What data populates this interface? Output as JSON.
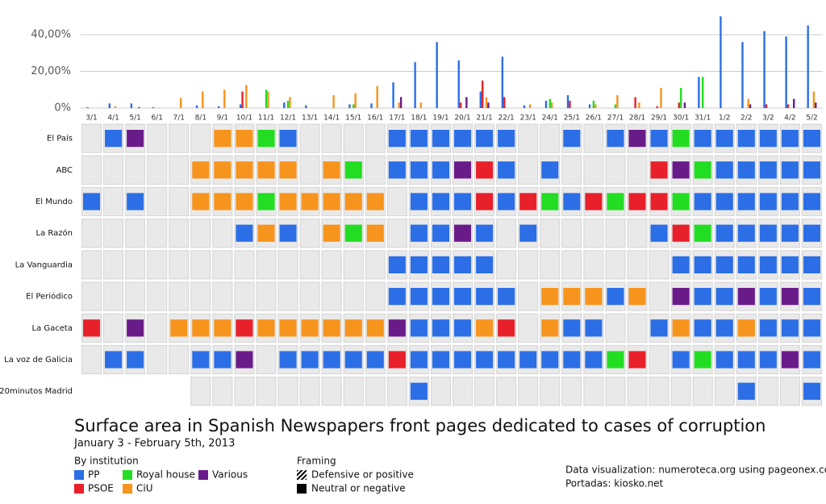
{
  "chart_data": {
    "type": "bar",
    "title": "Surface area in Spanish Newspapers front pages dedicated to cases of corruption",
    "subtitle": "January 3 - February 5th, 2013",
    "legend_title": "By institution",
    "framing_title": "Framing",
    "framing": [
      "Defensive or positive",
      "Neutral or negative"
    ],
    "credits": [
      "Data visualization: numeroteca.org using pageonex.com",
      "Portadas: kiosko.net"
    ],
    "categories": [
      "3/1",
      "4/1",
      "5/1",
      "6/1",
      "7/1",
      "8/1",
      "9/1",
      "10/1",
      "11/1",
      "12/1",
      "13/1",
      "14/1",
      "15/1",
      "16/1",
      "17/1",
      "18/1",
      "19/1",
      "20/1",
      "21/1",
      "22/1",
      "23/1",
      "24/1",
      "25/1",
      "26/1",
      "27/1",
      "28/1",
      "29/1",
      "30/1",
      "31/1",
      "1/2",
      "2/2",
      "3/2",
      "4/2",
      "5/2"
    ],
    "ylim": [
      0,
      51
    ],
    "yticks": [
      {
        "value": 0,
        "label": "0%"
      },
      {
        "value": 20,
        "label": "20,00%"
      },
      {
        "value": 40,
        "label": "40,00%"
      }
    ],
    "grid": true,
    "series": [
      {
        "name": "PP",
        "color": "#2b6ee6",
        "values": [
          0.5,
          2.5,
          2.5,
          0.5,
          0,
          1.5,
          1,
          2,
          0,
          3,
          1.5,
          0,
          2,
          2.5,
          14,
          25,
          36,
          26,
          9,
          28,
          1.5,
          4,
          7,
          2,
          0,
          0,
          0,
          0,
          17,
          50,
          36,
          42,
          39,
          45
        ]
      },
      {
        "name": "PSOE",
        "color": "#e8202a",
        "values": [
          0,
          0,
          0,
          0,
          0,
          0,
          0,
          9,
          0,
          0,
          0,
          0,
          0,
          0,
          0,
          0,
          0,
          3,
          15,
          6,
          0,
          0,
          4,
          0,
          0,
          6,
          1,
          3,
          0,
          0,
          0,
          2,
          2,
          0
        ]
      },
      {
        "name": "Royal house",
        "color": "#22dd22",
        "values": [
          0,
          0,
          0,
          0,
          0,
          0,
          0,
          0,
          10,
          4,
          0,
          0,
          2,
          0,
          0,
          0,
          0,
          0,
          0,
          0,
          0,
          5,
          0,
          4,
          2,
          0,
          0,
          11,
          17,
          0,
          0,
          0,
          0,
          0
        ]
      },
      {
        "name": "CiU",
        "color": "#f7941d",
        "values": [
          0,
          1,
          0,
          0,
          5.5,
          9,
          10,
          12.5,
          9,
          6,
          0,
          7,
          8,
          12,
          3,
          3,
          0,
          0,
          6,
          0,
          2,
          3,
          0,
          2,
          7,
          3,
          11,
          0,
          0,
          0,
          5,
          0,
          0,
          9
        ]
      },
      {
        "name": "Various",
        "color": "#6a1b8a",
        "values": [
          0,
          0,
          0.5,
          0,
          0,
          0,
          0,
          0,
          0,
          0,
          0,
          0,
          0,
          0,
          6,
          0,
          0,
          6,
          3,
          0,
          0,
          0,
          0,
          0,
          0,
          0,
          0,
          3,
          0,
          0,
          2,
          0,
          5,
          3
        ]
      }
    ],
    "papers": [
      {
        "name": "El País",
        "cells": [
          null,
          "PP",
          "Various",
          null,
          null,
          null,
          "CiU",
          "CiU",
          "Royal house",
          "PP",
          null,
          null,
          null,
          null,
          "PP",
          "PP",
          "PP",
          "PP",
          "PP",
          "PP",
          null,
          null,
          "PP",
          null,
          "PP",
          "Various",
          "PP",
          "Royal house",
          "PP",
          "PP",
          "PP",
          "PP",
          "PP",
          "PP"
        ]
      },
      {
        "name": "ABC",
        "cells": [
          null,
          null,
          null,
          null,
          null,
          "CiU",
          "CiU",
          "CiU",
          "CiU",
          "CiU",
          null,
          "CiU",
          "Royal house",
          null,
          "PP",
          "PP",
          "PP",
          "Various",
          "PSOE",
          "PP",
          null,
          "PP",
          null,
          null,
          null,
          null,
          "PSOE",
          "Various",
          "Royal house",
          "PP",
          "PP",
          "PP",
          "PP",
          "PP"
        ]
      },
      {
        "name": "El Mundo",
        "cells": [
          "PP",
          null,
          "PP",
          null,
          null,
          "CiU",
          "CiU",
          "CiU",
          "Royal house",
          "CiU",
          "CiU",
          "CiU",
          "CiU",
          "CiU",
          null,
          "PP",
          "PP",
          "PP",
          "PSOE",
          "PP",
          "PSOE",
          "Royal house",
          "PP",
          "PSOE",
          "Royal house",
          "PSOE",
          "PSOE",
          "Royal house",
          "PP",
          "PP",
          "PP",
          "PP",
          "PP",
          "PP"
        ]
      },
      {
        "name": "La Razón",
        "cells": [
          null,
          null,
          null,
          null,
          null,
          null,
          null,
          "PP",
          "CiU",
          "PP",
          null,
          "CiU",
          "Royal house",
          "CiU",
          null,
          "PP",
          "PP",
          "Various",
          "PP",
          null,
          "PP",
          null,
          null,
          null,
          null,
          null,
          "PP",
          "PSOE",
          "Royal house",
          "PP",
          "PP",
          "PP",
          "PP",
          "PP"
        ]
      },
      {
        "name": "La Vanguardia",
        "cells": [
          null,
          null,
          null,
          null,
          null,
          null,
          null,
          null,
          null,
          null,
          null,
          null,
          null,
          null,
          "PP",
          "PP",
          "PP",
          "PP",
          "PP",
          null,
          null,
          null,
          null,
          null,
          null,
          null,
          null,
          "PP",
          "PP",
          "PP",
          "PP",
          "PP",
          "PP",
          "PP"
        ]
      },
      {
        "name": "El Periódico",
        "cells": [
          null,
          null,
          null,
          null,
          null,
          null,
          null,
          null,
          null,
          null,
          null,
          null,
          null,
          null,
          "PP",
          "PP",
          "PP",
          "PP",
          "PP",
          "PP",
          null,
          "CiU",
          "CiU",
          "CiU",
          "PP",
          "CiU",
          null,
          "Various",
          "PP",
          "PP",
          "Various",
          "PP",
          "Various",
          "PP"
        ]
      },
      {
        "name": "La Gaceta",
        "cells": [
          "PSOE",
          null,
          "Various",
          null,
          "CiU",
          "CiU",
          "CiU",
          "PSOE",
          "CiU",
          "CiU",
          "CiU",
          "CiU",
          "CiU",
          "CiU",
          "Various",
          "PP",
          "PP",
          "PP",
          "CiU",
          "PSOE",
          null,
          "CiU",
          "PP",
          "PP",
          null,
          null,
          "PP",
          "CiU",
          "PP",
          "PP",
          "CiU",
          "PP",
          "PP",
          "PP"
        ]
      },
      {
        "name": "La voz de Galicia",
        "cells": [
          null,
          "PP",
          "PP",
          null,
          null,
          "PP",
          "PP",
          "Various",
          null,
          "PP",
          "PP",
          "PP",
          "PP",
          "PP",
          "PSOE",
          "PP",
          "PP",
          "PP",
          "PP",
          "PP",
          "PP",
          "PP",
          "PP",
          "PP",
          "Royal house",
          "PSOE",
          null,
          "PP",
          "Royal house",
          "PP",
          "PP",
          "PP",
          "Various",
          "PP"
        ]
      },
      {
        "name": "20minutos Madrid",
        "cells": [
          null,
          null,
          null,
          null,
          null,
          null,
          null,
          null,
          null,
          null,
          null,
          null,
          null,
          null,
          null,
          "PP",
          null,
          null,
          null,
          null,
          null,
          null,
          null,
          null,
          null,
          null,
          null,
          null,
          null,
          null,
          "PP",
          null,
          null,
          "PP"
        ]
      }
    ]
  }
}
